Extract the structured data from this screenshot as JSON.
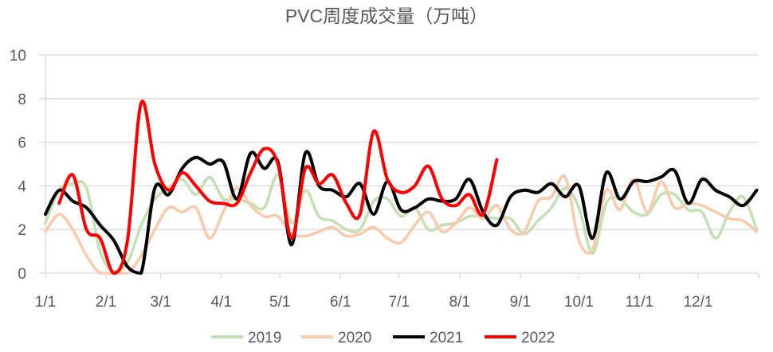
{
  "chart_data": {
    "type": "line",
    "title": "PVC周度成交量（万吨）",
    "xlabel": "",
    "ylabel": "",
    "ylim": [
      0,
      10
    ],
    "yticks": [
      "0",
      "2",
      "4",
      "6",
      "8",
      "10"
    ],
    "xticks": [
      "1/1",
      "2/1",
      "3/1",
      "4/1",
      "5/1",
      "6/1",
      "7/1",
      "8/1",
      "9/1",
      "10/1",
      "11/1",
      "12/1"
    ],
    "grid": true,
    "legend": "bottom",
    "x": [
      "1/1",
      "1/8",
      "1/15",
      "1/22",
      "1/29",
      "2/5",
      "2/12",
      "2/19",
      "2/26",
      "3/5",
      "3/12",
      "3/19",
      "3/26",
      "4/2",
      "4/9",
      "4/16",
      "4/23",
      "4/30",
      "5/7",
      "5/14",
      "5/21",
      "5/28",
      "6/4",
      "6/11",
      "6/18",
      "6/25",
      "7/2",
      "7/9",
      "7/16",
      "7/23",
      "7/30",
      "8/6",
      "8/13",
      "8/20",
      "8/27",
      "9/3",
      "9/10",
      "9/17",
      "9/24",
      "10/1",
      "10/8",
      "10/15",
      "10/22",
      "10/29",
      "11/5",
      "11/12",
      "11/19",
      "11/26",
      "12/3",
      "12/10",
      "12/17",
      "12/24",
      "12/31"
    ],
    "series": [
      {
        "name": "2019",
        "color": "#c5e0b4",
        "values": [
          2.3,
          3.8,
          4.1,
          3.9,
          1.0,
          0.1,
          0.5,
          2.2,
          3.4,
          3.9,
          4.3,
          3.6,
          4.4,
          3.4,
          3.4,
          3.2,
          3.0,
          4.5,
          2.3,
          3.8,
          2.6,
          2.4,
          2.0,
          2.0,
          3.3,
          3.4,
          2.6,
          3.0,
          2.0,
          2.2,
          2.3,
          2.6,
          2.6,
          2.5,
          2.5,
          1.8,
          2.4,
          3.0,
          3.9,
          3.0,
          0.9,
          3.2,
          3.4,
          2.8,
          2.7,
          3.6,
          3.6,
          2.9,
          2.8,
          1.6,
          2.8,
          3.5,
          2.0
        ]
      },
      {
        "name": "2020",
        "color": "#f8cbad",
        "values": [
          1.9,
          2.7,
          2.0,
          0.8,
          0,
          0,
          0,
          0.8,
          2.0,
          3.0,
          2.8,
          3.0,
          1.6,
          2.8,
          3.9,
          3.1,
          2.6,
          2.6,
          1.8,
          1.7,
          1.9,
          2.1,
          1.7,
          1.8,
          2.1,
          1.6,
          1.4,
          2.2,
          2.8,
          1.9,
          2.3,
          3.0,
          2.5,
          3.1,
          2.0,
          1.9,
          3.3,
          3.5,
          4.4,
          1.5,
          1.1,
          3.8,
          2.9,
          4.3,
          2.8,
          4.2,
          3.0,
          3.2,
          3.1,
          2.8,
          2.5,
          2.4,
          1.9
        ]
      },
      {
        "name": "2021",
        "color": "#000000",
        "values": [
          2.7,
          3.8,
          3.3,
          3.0,
          2.2,
          1.5,
          0.3,
          0,
          3.9,
          3.6,
          4.8,
          5.3,
          5.0,
          5.1,
          3.4,
          5.5,
          4.8,
          5.1,
          1.3,
          5.5,
          4.0,
          3.8,
          3.5,
          4.1,
          2.7,
          4.2,
          2.9,
          3.0,
          3.4,
          3.3,
          3.4,
          4.3,
          2.8,
          2.2,
          3.5,
          3.8,
          3.7,
          4.1,
          3.5,
          4.0,
          1.6,
          4.6,
          3.4,
          4.2,
          4.2,
          4.4,
          4.7,
          3.2,
          4.3,
          3.8,
          3.5,
          3.1,
          3.8
        ]
      },
      {
        "name": "2022",
        "color": "#ff0000",
        "values": [
          null,
          3.2,
          4.5,
          2.0,
          1.6,
          0,
          1.5,
          7.8,
          5.0,
          3.8,
          4.6,
          4.0,
          3.3,
          3.2,
          3.2,
          4.6,
          5.7,
          5.0,
          1.6,
          4.8,
          4.1,
          4.5,
          3.2,
          2.7,
          6.5,
          4.3,
          3.7,
          4.0,
          4.9,
          3.4,
          3.1,
          3.6,
          2.7,
          5.2,
          null,
          null,
          null,
          null,
          null,
          null,
          null,
          null,
          null,
          null,
          null,
          null,
          null,
          null,
          null,
          null,
          null,
          null,
          null
        ]
      }
    ]
  }
}
